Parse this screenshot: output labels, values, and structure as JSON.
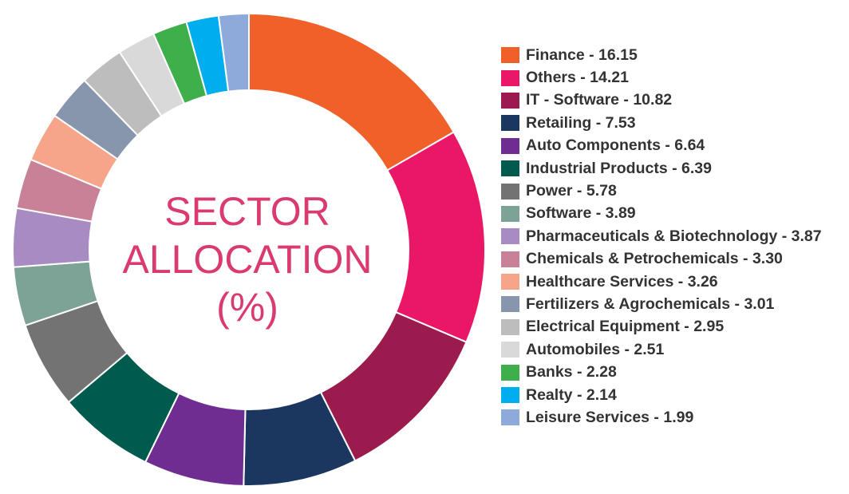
{
  "chart_data": {
    "type": "pie",
    "title_lines": [
      "SECTOR",
      "ALLOCATION",
      "(%)"
    ],
    "categories": [
      "Finance",
      "Others",
      "IT - Software",
      "Retailing",
      "Auto Components",
      "Industrial Products",
      "Power",
      "Software",
      "Pharmaceuticals & Biotechnology",
      "Chemicals & Petrochemicals",
      "Healthcare Services",
      "Fertilizers & Agrochemicals",
      "Electrical Equipment",
      "Automobiles",
      "Banks",
      "Realty",
      "Leisure Services"
    ],
    "values": [
      16.15,
      14.21,
      10.82,
      7.53,
      6.64,
      6.39,
      5.78,
      3.89,
      3.87,
      3.3,
      3.26,
      3.01,
      2.95,
      2.51,
      2.28,
      2.14,
      1.99
    ],
    "value_labels": [
      "16.15",
      "14.21",
      "10.82",
      "7.53",
      "6.64",
      "6.39",
      "5.78",
      "3.89",
      "3.87",
      "3.30",
      "3.26",
      "3.01",
      "2.95",
      "2.51",
      "2.28",
      "2.14",
      "1.99"
    ],
    "colors": [
      "#f0612a",
      "#ea1766",
      "#9c1b4e",
      "#1b365f",
      "#6f2c91",
      "#005b4f",
      "#737373",
      "#7da397",
      "#a98bc3",
      "#c88196",
      "#f6a58a",
      "#8896ad",
      "#bdbdbd",
      "#d9d9d9",
      "#3eaf4a",
      "#00aeef",
      "#8eaadb"
    ],
    "legend_position": "right",
    "donut": true
  }
}
